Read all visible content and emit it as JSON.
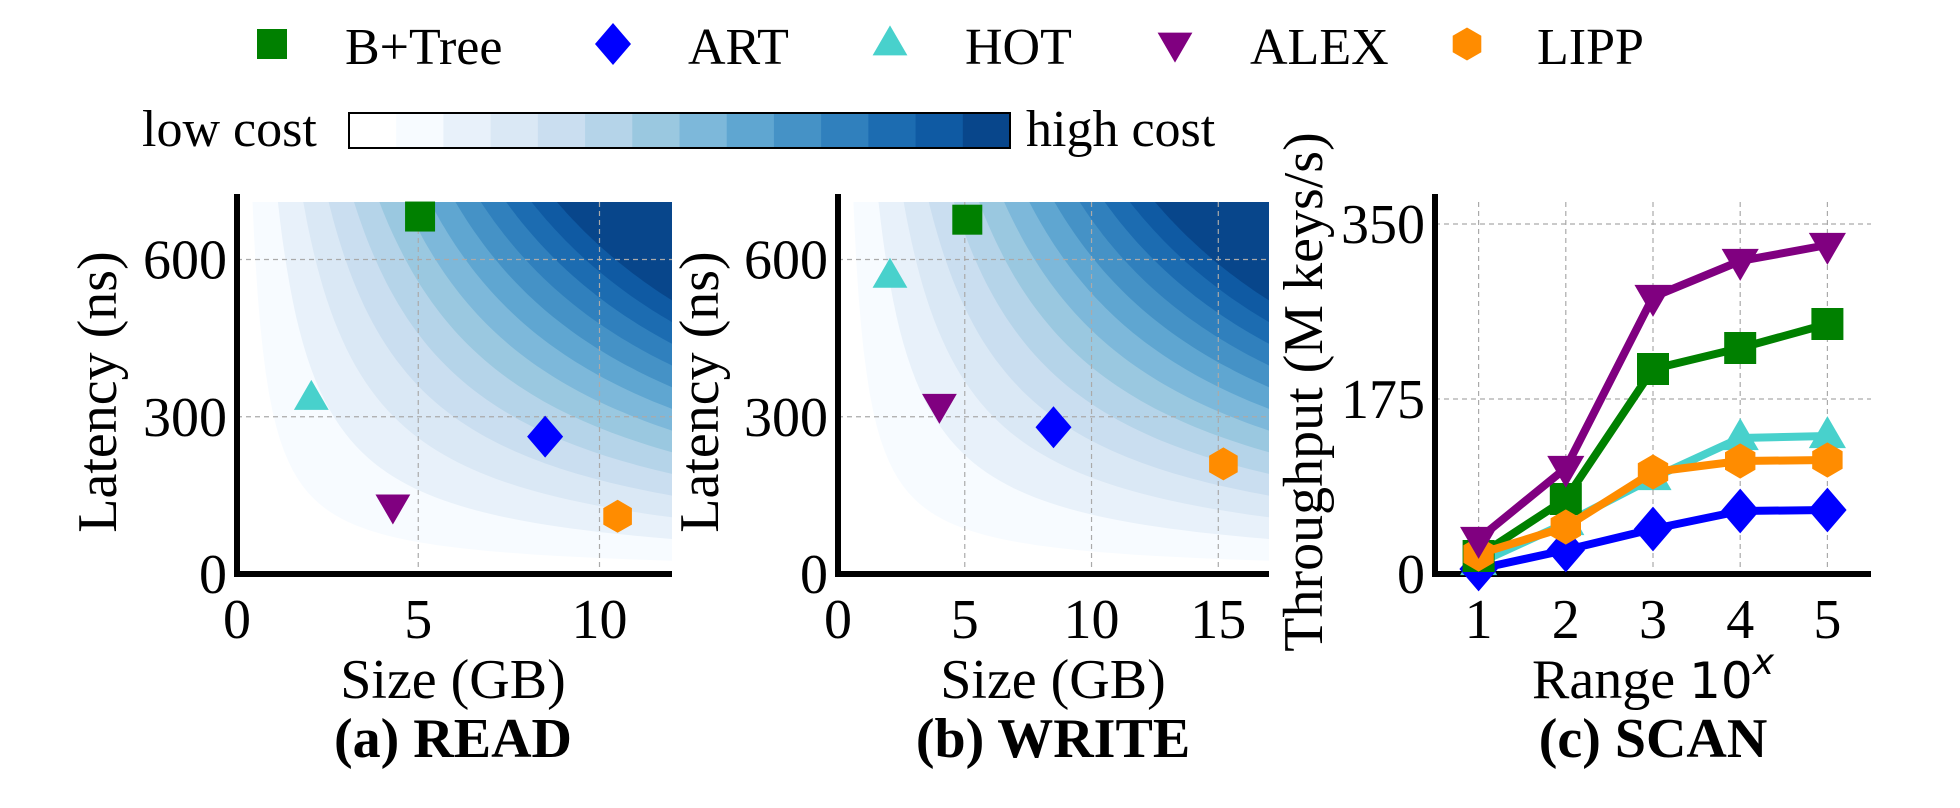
{
  "legend": {
    "items": [
      {
        "label": "B+Tree",
        "marker": "square",
        "color": "#008000"
      },
      {
        "label": "ART",
        "marker": "diamond",
        "color": "#0000ff"
      },
      {
        "label": "HOT",
        "marker": "triangle-up",
        "color": "#48d1cc"
      },
      {
        "label": "ALEX",
        "marker": "triangle-down",
        "color": "#800080"
      },
      {
        "label": "LIPP",
        "marker": "hexagon",
        "color": "#ff8c00"
      }
    ]
  },
  "colorbar": {
    "low_label": "low cost",
    "high_label": "high cost",
    "colors": [
      "#ffffff",
      "#f7fbff",
      "#e8f1fa",
      "#dae8f5",
      "#cadef0",
      "#b5d4e9",
      "#9ac8e0",
      "#7db8da",
      "#5fa6d1",
      "#4592c6",
      "#3080bd",
      "#1c6cb1",
      "#0f5aa3",
      "#08468b"
    ]
  },
  "chart_data": [
    {
      "type": "scatter",
      "title": "(a) READ",
      "xlabel": "Size (GB)",
      "ylabel": "Latency (ns)",
      "xlim": [
        0,
        12
      ],
      "ylim": [
        0,
        725
      ],
      "xticks": [
        "0",
        "5",
        "10"
      ],
      "xtick_values": [
        0,
        5,
        10
      ],
      "yticks": [
        "0",
        "300",
        "600"
      ],
      "ytick_values": [
        0,
        300,
        600
      ],
      "grid": true,
      "background": "cost contour (size x latency)",
      "points": [
        {
          "name": "B+Tree",
          "x": 5.05,
          "y": 682
        },
        {
          "name": "ART",
          "x": 8.5,
          "y": 262
        },
        {
          "name": "HOT",
          "x": 2.05,
          "y": 335
        },
        {
          "name": "ALEX",
          "x": 4.3,
          "y": 130
        },
        {
          "name": "LIPP",
          "x": 10.5,
          "y": 110
        }
      ]
    },
    {
      "type": "scatter",
      "title": "(b) WRITE",
      "xlabel": "Size (GB)",
      "ylabel": "Latency (ns)",
      "xlim": [
        0,
        17
      ],
      "ylim": [
        0,
        725
      ],
      "xticks": [
        "0",
        "5",
        "10",
        "15"
      ],
      "xtick_values": [
        0,
        5,
        10,
        15
      ],
      "yticks": [
        "0",
        "300",
        "600"
      ],
      "ytick_values": [
        0,
        300,
        600
      ],
      "grid": true,
      "background": "cost contour (size x latency)",
      "points": [
        {
          "name": "B+Tree",
          "x": 5.1,
          "y": 676
        },
        {
          "name": "ART",
          "x": 8.5,
          "y": 280
        },
        {
          "name": "HOT",
          "x": 2.05,
          "y": 568
        },
        {
          "name": "ALEX",
          "x": 4.0,
          "y": 322
        },
        {
          "name": "LIPP",
          "x": 15.2,
          "y": 210
        }
      ]
    },
    {
      "type": "line",
      "title": "(c) SCAN",
      "xlabel": "Range ",
      "xlabel_math_base": "10",
      "xlabel_math_exp": "x",
      "ylabel": "Throughput (M keys/s)",
      "xlim": [
        0.5,
        5.5
      ],
      "ylim": [
        0,
        380
      ],
      "x": [
        1,
        2,
        3,
        4,
        5
      ],
      "xticks": [
        "1",
        "2",
        "3",
        "4",
        "5"
      ],
      "xtick_values": [
        1,
        2,
        3,
        4,
        5
      ],
      "yticks": [
        "0",
        "175",
        "350"
      ],
      "ytick_values": [
        0,
        175,
        350
      ],
      "grid": true,
      "series": [
        {
          "name": "HOT",
          "values": [
            11,
            51,
            96,
            136,
            138
          ]
        },
        {
          "name": "ART",
          "values": [
            5,
            24,
            45,
            63,
            64
          ]
        },
        {
          "name": "B+Tree",
          "values": [
            18,
            75,
            205,
            226,
            250
          ]
        },
        {
          "name": "LIPP",
          "values": [
            20,
            47,
            102,
            113,
            114
          ]
        },
        {
          "name": "ALEX",
          "values": [
            35,
            106,
            277,
            313,
            329
          ]
        }
      ]
    }
  ]
}
